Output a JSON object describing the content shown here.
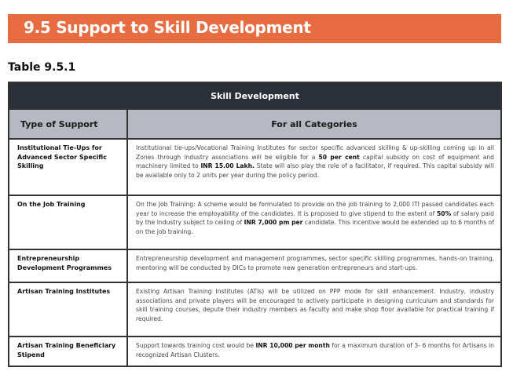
{
  "section_title": "9.5 Support to Skill Development",
  "table_label": "Table 9.5.1",
  "table": {
    "title": "Skill Development",
    "headers": [
      "Type of Support",
      "For all Categories"
    ],
    "rows": [
      {
        "type": "Institutional Tie-Ups for Advanced Sector Specific Skilling",
        "desc": [
          {
            "text": "Institutional tie-ups/Vocational Training Institutes for sector specific advanced skilling & up-skilling coming up in all Zones through industry associations will be eligible for a ",
            "bold": false
          },
          {
            "text": "50 per cent",
            "bold": true
          },
          {
            "text": " capital subsidy on cost of equipment and machinery limited to ",
            "bold": false
          },
          {
            "text": "INR 15.00 Lakh.",
            "bold": true
          },
          {
            "text": " State will also play the role of a facilitator, if required. This capital subsidy will be available only to 2 units per year during the policy period.",
            "bold": false
          }
        ]
      },
      {
        "type": "On the Job Training",
        "desc": [
          {
            "text": "On the Job Training: A scheme would be formulated to provide on the job training to 2,000 ITI passed candidates each year to increase the employability of the candidates. It is proposed to give stipend to the extent of ",
            "bold": false
          },
          {
            "text": "50%",
            "bold": true
          },
          {
            "text": " of salary paid by the Industry subject to ceiling of ",
            "bold": false
          },
          {
            "text": "INR 7,000 pm per",
            "bold": true
          },
          {
            "text": " candidate. This incentive would be extended up to 6 months of on the job training.",
            "bold": false
          }
        ]
      },
      {
        "type": "Entrepreneurship Development Programmes",
        "desc": [
          {
            "text": "Entrepreneurship development and management programmes, sector specific skilling programmes, hands-on training, mentoring will be conducted by DICs to promote new generation entrepreneurs and start-ups.",
            "bold": false
          }
        ]
      },
      {
        "type": "Artisan Training Institutes",
        "desc": [
          {
            "text": "Existing Artisan Training Institutes (ATIs) will be utilized on PPP mode for skill enhancement. Industry, industry associations and private players will be encouraged to actively participate in designing curriculum and standards for skill training courses, depute their industry members as faculty and make shop floor available for practical training if required.",
            "bold": false
          }
        ]
      },
      {
        "type": "Artisan Training Beneficiary Stipend",
        "desc": [
          {
            "text": "Support towards training cost would be ",
            "bold": false
          },
          {
            "text": "INR 10,000 per month",
            "bold": true
          },
          {
            "text": " for a maximum duration of 3- 6 months for Artisans in recognized Artisan Clusters.",
            "bold": false
          }
        ]
      }
    ]
  }
}
